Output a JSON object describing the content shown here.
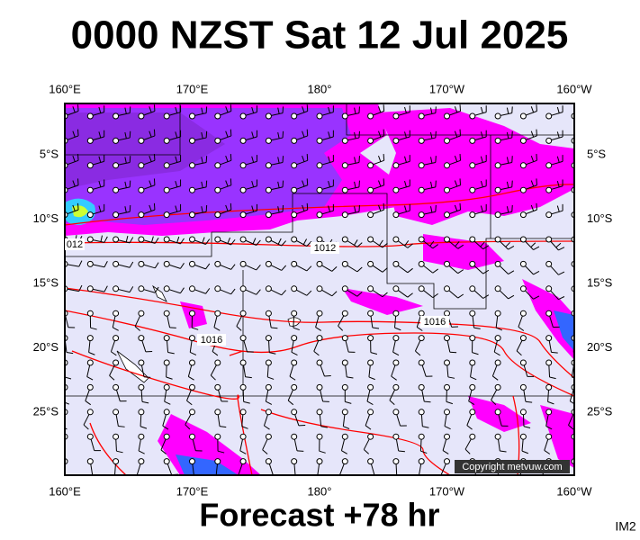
{
  "header": {
    "title": "0000 NZST Sat 12 Jul 2025"
  },
  "axes": {
    "longitude": [
      "160°E",
      "170°E",
      "180°",
      "170°W",
      "160°W"
    ],
    "latitude": [
      "5°S",
      "10°S",
      "15°S",
      "20°S",
      "25°S"
    ]
  },
  "isobar_labels": [
    "012",
    "1012",
    "1016",
    "1016"
  ],
  "copyright": "Copyright metvuw.com",
  "footer": {
    "label": "Forecast +78 hr",
    "id": "IM2"
  }
}
